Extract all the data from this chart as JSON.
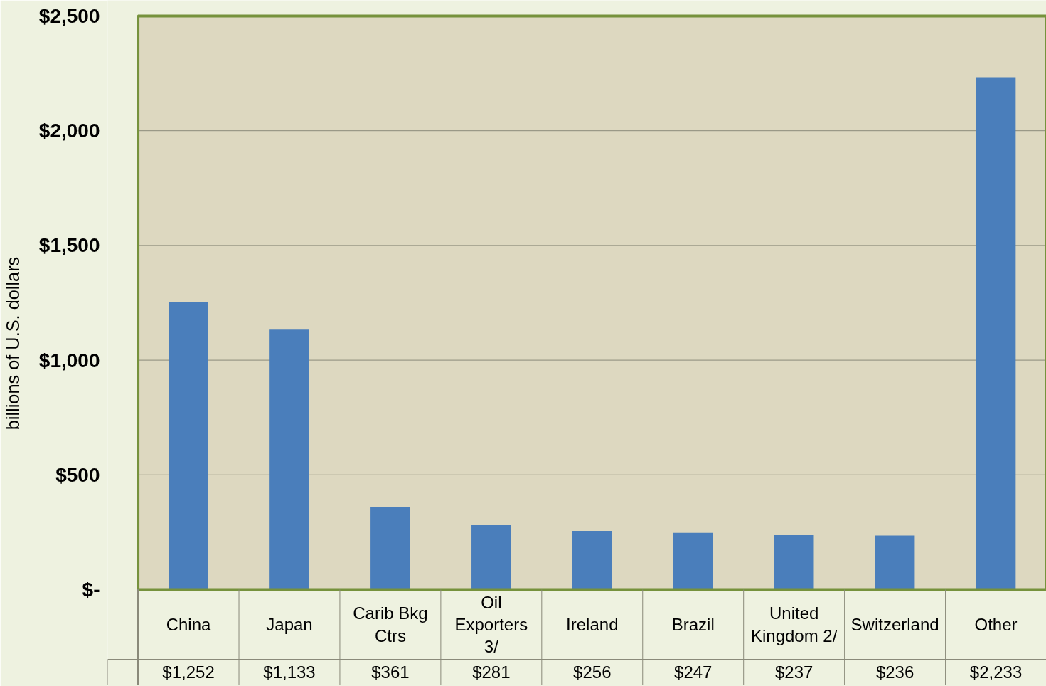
{
  "chart_data": {
    "type": "bar",
    "ylabel": "billions of U.S. dollars",
    "categories": [
      "China",
      "Japan",
      "Carib Bkg Ctrs",
      "Oil Exporters 3/",
      "Ireland",
      "Brazil",
      "United Kingdom 2/",
      "Switzerland",
      "Other"
    ],
    "series": [
      {
        "color": "#4a7ebb",
        "values": [
          1252,
          1133,
          361,
          281,
          256,
          247,
          237,
          236,
          2233
        ],
        "value_labels": [
          "$1,252",
          "$1,133",
          "$361",
          "$281",
          "$256",
          "$247",
          "$237",
          "$236",
          "$2,233"
        ]
      }
    ],
    "ylim": [
      0,
      2500
    ],
    "yticks": [
      {
        "value": 0,
        "label": "$-"
      },
      {
        "value": 500,
        "label": "$500"
      },
      {
        "value": 1000,
        "label": "$1,000"
      },
      {
        "value": 1500,
        "label": "$1,500"
      },
      {
        "value": 2000,
        "label": "$2,000"
      },
      {
        "value": 2500,
        "label": "$2,500"
      }
    ],
    "grid": "y"
  }
}
